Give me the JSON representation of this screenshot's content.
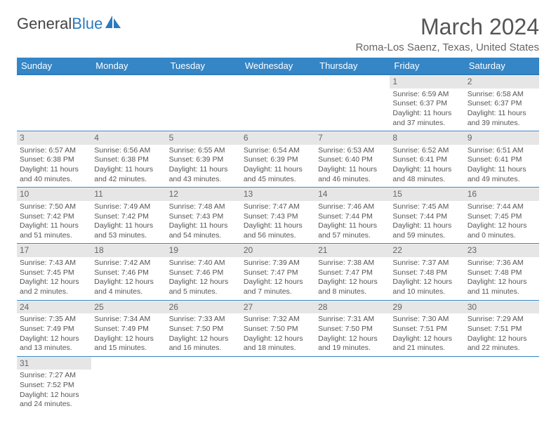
{
  "brand": {
    "name1": "General",
    "name2": "Blue",
    "color_primary": "#3486c7",
    "color_accent": "#2b7bbc"
  },
  "title": "March 2024",
  "location": "Roma-Los Saenz, Texas, United States",
  "weekdays": [
    "Sunday",
    "Monday",
    "Tuesday",
    "Wednesday",
    "Thursday",
    "Friday",
    "Saturday"
  ],
  "layout": {
    "first_day_column_index": 5,
    "days_in_month": 31
  },
  "styling": {
    "header_bg": "#3486c7",
    "header_text": "#ffffff",
    "daynum_bg": "#e6e6e6",
    "daynum_text": "#666666",
    "cell_border": "#3486c7",
    "body_text": "#555555",
    "title_fontsize": 32,
    "location_fontsize": 15,
    "weekday_fontsize": 13,
    "cell_fontsize": 10.5
  },
  "days": [
    {
      "n": 1,
      "sunrise": "6:59 AM",
      "sunset": "6:37 PM",
      "daylight": "11 hours and 37 minutes."
    },
    {
      "n": 2,
      "sunrise": "6:58 AM",
      "sunset": "6:37 PM",
      "daylight": "11 hours and 39 minutes."
    },
    {
      "n": 3,
      "sunrise": "6:57 AM",
      "sunset": "6:38 PM",
      "daylight": "11 hours and 40 minutes."
    },
    {
      "n": 4,
      "sunrise": "6:56 AM",
      "sunset": "6:38 PM",
      "daylight": "11 hours and 42 minutes."
    },
    {
      "n": 5,
      "sunrise": "6:55 AM",
      "sunset": "6:39 PM",
      "daylight": "11 hours and 43 minutes."
    },
    {
      "n": 6,
      "sunrise": "6:54 AM",
      "sunset": "6:39 PM",
      "daylight": "11 hours and 45 minutes."
    },
    {
      "n": 7,
      "sunrise": "6:53 AM",
      "sunset": "6:40 PM",
      "daylight": "11 hours and 46 minutes."
    },
    {
      "n": 8,
      "sunrise": "6:52 AM",
      "sunset": "6:41 PM",
      "daylight": "11 hours and 48 minutes."
    },
    {
      "n": 9,
      "sunrise": "6:51 AM",
      "sunset": "6:41 PM",
      "daylight": "11 hours and 49 minutes."
    },
    {
      "n": 10,
      "sunrise": "7:50 AM",
      "sunset": "7:42 PM",
      "daylight": "11 hours and 51 minutes."
    },
    {
      "n": 11,
      "sunrise": "7:49 AM",
      "sunset": "7:42 PM",
      "daylight": "11 hours and 53 minutes."
    },
    {
      "n": 12,
      "sunrise": "7:48 AM",
      "sunset": "7:43 PM",
      "daylight": "11 hours and 54 minutes."
    },
    {
      "n": 13,
      "sunrise": "7:47 AM",
      "sunset": "7:43 PM",
      "daylight": "11 hours and 56 minutes."
    },
    {
      "n": 14,
      "sunrise": "7:46 AM",
      "sunset": "7:44 PM",
      "daylight": "11 hours and 57 minutes."
    },
    {
      "n": 15,
      "sunrise": "7:45 AM",
      "sunset": "7:44 PM",
      "daylight": "11 hours and 59 minutes."
    },
    {
      "n": 16,
      "sunrise": "7:44 AM",
      "sunset": "7:45 PM",
      "daylight": "12 hours and 0 minutes."
    },
    {
      "n": 17,
      "sunrise": "7:43 AM",
      "sunset": "7:45 PM",
      "daylight": "12 hours and 2 minutes."
    },
    {
      "n": 18,
      "sunrise": "7:42 AM",
      "sunset": "7:46 PM",
      "daylight": "12 hours and 4 minutes."
    },
    {
      "n": 19,
      "sunrise": "7:40 AM",
      "sunset": "7:46 PM",
      "daylight": "12 hours and 5 minutes."
    },
    {
      "n": 20,
      "sunrise": "7:39 AM",
      "sunset": "7:47 PM",
      "daylight": "12 hours and 7 minutes."
    },
    {
      "n": 21,
      "sunrise": "7:38 AM",
      "sunset": "7:47 PM",
      "daylight": "12 hours and 8 minutes."
    },
    {
      "n": 22,
      "sunrise": "7:37 AM",
      "sunset": "7:48 PM",
      "daylight": "12 hours and 10 minutes."
    },
    {
      "n": 23,
      "sunrise": "7:36 AM",
      "sunset": "7:48 PM",
      "daylight": "12 hours and 11 minutes."
    },
    {
      "n": 24,
      "sunrise": "7:35 AM",
      "sunset": "7:49 PM",
      "daylight": "12 hours and 13 minutes."
    },
    {
      "n": 25,
      "sunrise": "7:34 AM",
      "sunset": "7:49 PM",
      "daylight": "12 hours and 15 minutes."
    },
    {
      "n": 26,
      "sunrise": "7:33 AM",
      "sunset": "7:50 PM",
      "daylight": "12 hours and 16 minutes."
    },
    {
      "n": 27,
      "sunrise": "7:32 AM",
      "sunset": "7:50 PM",
      "daylight": "12 hours and 18 minutes."
    },
    {
      "n": 28,
      "sunrise": "7:31 AM",
      "sunset": "7:50 PM",
      "daylight": "12 hours and 19 minutes."
    },
    {
      "n": 29,
      "sunrise": "7:30 AM",
      "sunset": "7:51 PM",
      "daylight": "12 hours and 21 minutes."
    },
    {
      "n": 30,
      "sunrise": "7:29 AM",
      "sunset": "7:51 PM",
      "daylight": "12 hours and 22 minutes."
    },
    {
      "n": 31,
      "sunrise": "7:27 AM",
      "sunset": "7:52 PM",
      "daylight": "12 hours and 24 minutes."
    }
  ],
  "labels": {
    "sunrise": "Sunrise:",
    "sunset": "Sunset:",
    "daylight": "Daylight:"
  }
}
